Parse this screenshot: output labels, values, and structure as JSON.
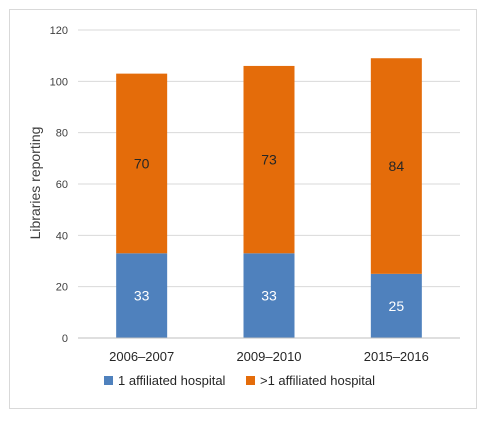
{
  "chart_data": {
    "type": "bar",
    "stacked": true,
    "categories": [
      "2006–2007",
      "2009–2010",
      "2015–2016"
    ],
    "series": [
      {
        "name": "1 affiliated hospital",
        "values": [
          33,
          33,
          25
        ],
        "color": "#4f81bd"
      },
      {
        "name": ">1 affiliated hospital",
        "values": [
          70,
          73,
          84
        ],
        "color": "#e46c0a"
      }
    ],
    "title": "",
    "xlabel": "",
    "ylabel": "Libraries reporting",
    "ylim": [
      0,
      120
    ],
    "yticks": [
      0,
      20,
      40,
      60,
      80,
      100,
      120
    ],
    "grid": true,
    "legend_position": "bottom"
  }
}
